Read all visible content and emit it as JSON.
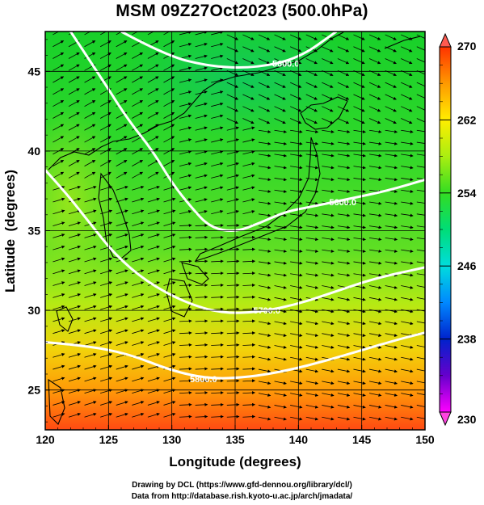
{
  "title": "MSM 09Z27Oct2023 (500.0hPa)",
  "credits": {
    "line1": "Drawing by DCL (https://www.gfd-dennou.org/library/dcl/)",
    "line2": "Data from http://database.rish.kyoto-u.ac.jp/arch/jmadata/"
  },
  "chart_data": {
    "type": "heatmap",
    "xlabel": "Longitude (degrees)",
    "ylabel": "Latitude  (degrees)",
    "xlim": [
      120,
      150
    ],
    "ylim": [
      22.5,
      47.5
    ],
    "x_ticks": [
      "120",
      "125",
      "130",
      "135",
      "140",
      "145",
      "150"
    ],
    "y_ticks": [
      "25",
      "30",
      "35",
      "40",
      "45"
    ],
    "colorbar": {
      "min": 230,
      "max": 270,
      "tick_labels": [
        "270",
        "262",
        "254",
        "246",
        "238",
        "230"
      ],
      "colors": [
        "#ff00ff",
        "#6600cc",
        "#0022cc",
        "#0088ff",
        "#00dddd",
        "#00dd77",
        "#33dd22",
        "#aaee11",
        "#ffee00",
        "#ff9900",
        "#ff3300"
      ]
    },
    "contours": [
      {
        "label": "5600.0",
        "points": [
          [
            126,
            47.5
          ],
          [
            129.5,
            46.0
          ],
          [
            133,
            45.3
          ],
          [
            136.5,
            45.2
          ],
          [
            140,
            45.8
          ],
          [
            143,
            47.5
          ]
        ]
      },
      {
        "label": "5600.0",
        "points": [
          [
            122,
            47.5
          ],
          [
            124.5,
            44.5
          ],
          [
            126.5,
            42.0
          ],
          [
            128.5,
            40.0
          ],
          [
            130,
            38.0
          ],
          [
            131.5,
            36.5
          ],
          [
            133,
            35.2
          ],
          [
            135,
            34.9
          ],
          [
            137,
            35.5
          ],
          [
            139,
            36.2
          ],
          [
            141,
            36.5
          ],
          [
            144,
            37.0
          ],
          [
            147,
            37.5
          ],
          [
            150,
            38.2
          ]
        ]
      },
      {
        "label": "5700.0",
        "points": [
          [
            120,
            38.8
          ],
          [
            121.5,
            37.5
          ],
          [
            123.5,
            35.5
          ],
          [
            125.5,
            33.5
          ],
          [
            128,
            31.8
          ],
          [
            131,
            30.5
          ],
          [
            134,
            29.8
          ],
          [
            137,
            29.9
          ],
          [
            140,
            30.4
          ],
          [
            143,
            31.2
          ],
          [
            146,
            32.0
          ],
          [
            150,
            32.7
          ]
        ]
      },
      {
        "label": "5800.0",
        "points": [
          [
            120,
            28.0
          ],
          [
            123,
            27.8
          ],
          [
            126.5,
            27.3
          ],
          [
            130,
            26.2
          ],
          [
            133,
            25.7
          ],
          [
            136,
            25.8
          ],
          [
            139,
            26.2
          ],
          [
            142,
            26.8
          ],
          [
            145,
            27.5
          ],
          [
            148,
            28.2
          ],
          [
            150,
            28.6
          ]
        ]
      }
    ],
    "contour_label_positions": [
      [
        139.0,
        45.5
      ],
      [
        143.5,
        36.8
      ],
      [
        137.5,
        30.0
      ],
      [
        132.5,
        25.7
      ]
    ]
  }
}
